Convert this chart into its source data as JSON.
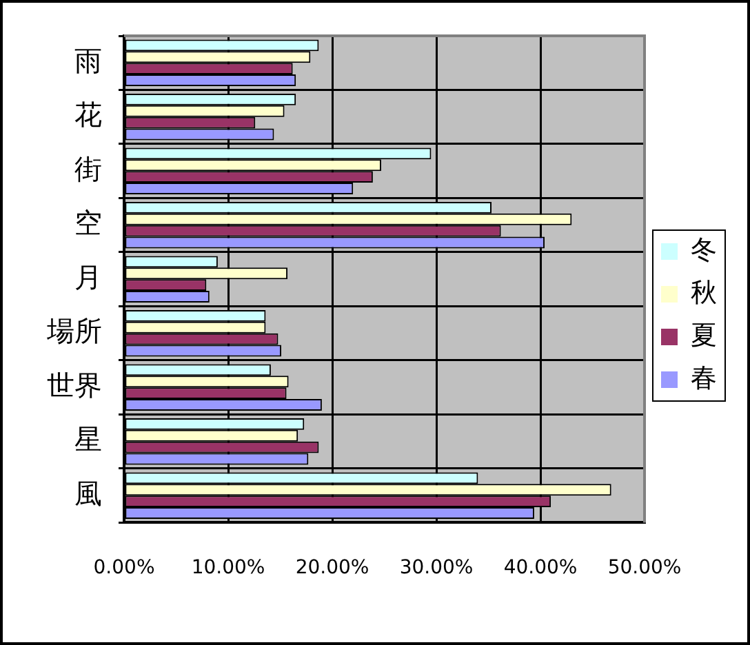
{
  "chart_data": {
    "type": "bar",
    "orientation": "horizontal",
    "categories": [
      "雨",
      "花",
      "街",
      "空",
      "月",
      "場所",
      "世界",
      "星",
      "風"
    ],
    "series": [
      {
        "name": "冬",
        "color": "#ccffff",
        "values": [
          18.7,
          16.5,
          29.5,
          35.3,
          9.0,
          13.6,
          14.1,
          17.3,
          34.0
        ]
      },
      {
        "name": "秋",
        "color": "#ffffcc",
        "values": [
          17.9,
          15.4,
          24.7,
          43.0,
          15.7,
          13.6,
          15.8,
          16.7,
          46.8
        ]
      },
      {
        "name": "夏",
        "color": "#993366",
        "values": [
          16.2,
          12.6,
          23.9,
          36.2,
          7.9,
          14.8,
          15.6,
          18.7,
          41.0
        ]
      },
      {
        "name": "春",
        "color": "#9999ff",
        "values": [
          16.5,
          14.4,
          22.0,
          40.4,
          8.2,
          15.1,
          19.0,
          17.7,
          39.4
        ]
      }
    ],
    "xlim": [
      0,
      50
    ],
    "xticks": [
      {
        "value": 0,
        "label": "0.00%"
      },
      {
        "value": 10,
        "label": "10.00%"
      },
      {
        "value": 20,
        "label": "20.00%"
      },
      {
        "value": 30,
        "label": "30.00%"
      },
      {
        "value": 40,
        "label": "40.00%"
      },
      {
        "value": 50,
        "label": "50.00%"
      }
    ],
    "grid": true,
    "legend": "right"
  }
}
